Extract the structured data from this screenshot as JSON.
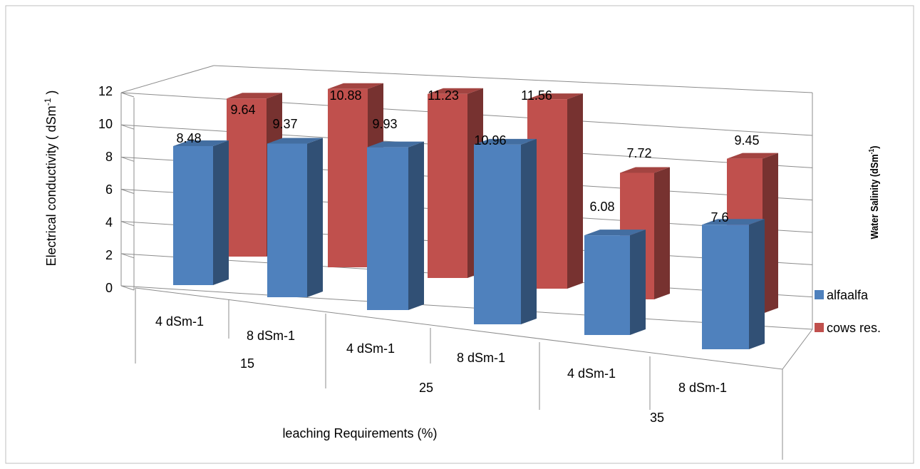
{
  "chart_data": {
    "type": "bar",
    "subtype": "3d-clustered-column",
    "xlabel": "leaching Requirements (%)",
    "ylabel": "Electrical  conductivity  ( dSm",
    "ylabel_sup": "-1",
    "ylabel_end": " )",
    "zlabel": "Water Salinity (dSm",
    "zlabel_sup": "-1",
    "zlabel_end": ")",
    "ylim": [
      0,
      12
    ],
    "yticks": [
      "0",
      "2",
      "4",
      "6",
      "8",
      "10",
      "12"
    ],
    "grid": true,
    "legend_position": "right",
    "group_labels": [
      "15",
      "25",
      "35"
    ],
    "categories": [
      "4 dSm-1",
      "8 dSm-1",
      "4 dSm-1",
      "8 dSm-1",
      "4 dSm-1",
      "8 dSm-1"
    ],
    "series": [
      {
        "name": "alfaalfa",
        "color": "#4F81BD",
        "values": [
          8.48,
          9.37,
          9.93,
          10.96,
          6.08,
          7.6
        ],
        "labels": [
          "8.48",
          "9.37",
          "9.93",
          "10.96",
          "6.08",
          "7.6"
        ]
      },
      {
        "name": "cows res.",
        "color": "#C0504D",
        "values": [
          9.64,
          10.88,
          11.23,
          11.56,
          7.72,
          9.45
        ],
        "labels": [
          "9.64",
          "10.88",
          "11.23",
          "11.56",
          "7.72",
          "9.45"
        ]
      }
    ]
  }
}
